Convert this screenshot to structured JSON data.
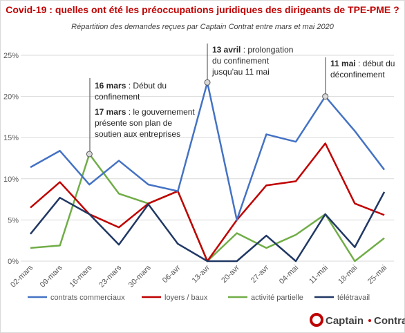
{
  "chart_data": {
    "type": "line",
    "title": "Covid-19 : quelles ont été les préoccupations juridiques des dirigeants de TPE-PME ?",
    "subtitle": "Répartition des demandes reçues par Captain Contrat entre mars et mai 2020",
    "categories": [
      "02-mars",
      "09-mars",
      "16-mars",
      "23-mars",
      "30-mars",
      "06-avr",
      "13-avr",
      "20-avr",
      "27-avr",
      "04-mai",
      "11-mai",
      "18-mai",
      "25-mai"
    ],
    "series": [
      {
        "name": "contrats commerciaux",
        "color": "#4472c4",
        "values": [
          11.4,
          13.4,
          9.3,
          12.2,
          9.3,
          8.5,
          21.7,
          5,
          15.4,
          14.5,
          20,
          15.8,
          11.1
        ]
      },
      {
        "name": "loyers / baux",
        "color": "#c00000",
        "values": [
          6.5,
          9.6,
          5.7,
          4.1,
          7,
          8.5,
          0,
          5,
          9.2,
          9.7,
          14.3,
          7,
          5.6
        ]
      },
      {
        "name": "activité partielle",
        "color": "#70ad47",
        "values": [
          1.6,
          1.9,
          13,
          8.2,
          7,
          8.5,
          0,
          3.4,
          1.6,
          3.2,
          5.7,
          0,
          2.8
        ]
      },
      {
        "name": "télétravail",
        "color": "#203864",
        "values": [
          3.3,
          7.7,
          5.7,
          2,
          6.9,
          2.1,
          0,
          0,
          3.1,
          0,
          5.7,
          1.7,
          8.4
        ]
      }
    ],
    "ylim": [
      0,
      25
    ],
    "yticks": [
      {
        "value": 0,
        "label": "0%"
      },
      {
        "value": 5,
        "label": "5%"
      },
      {
        "value": 10,
        "label": "10%"
      },
      {
        "value": 15,
        "label": "15%"
      },
      {
        "value": 20,
        "label": "20%"
      },
      {
        "value": 25,
        "label": "25%"
      }
    ],
    "grid": true,
    "legend": "bottom",
    "annotations": [
      {
        "paragraphs": [
          [
            {
              "bold": "16 mars",
              "text": " : Début du"
            },
            {
              "text": "confinement"
            }
          ],
          [
            {
              "bold": "17 mars",
              "text": " : le gouvernement"
            },
            {
              "text": "présente son plan de"
            },
            {
              "text": "soutien aux entreprises"
            }
          ]
        ]
      },
      {
        "paragraphs": [
          [
            {
              "bold": "13 avril",
              "text": " : prolongation"
            },
            {
              "text": "du confinement"
            },
            {
              "text": "jusqu'au 11 mai"
            }
          ]
        ]
      },
      {
        "paragraphs": [
          [
            {
              "bold": "11 mai",
              "text": " : début du"
            },
            {
              "text": "déconfinement"
            }
          ]
        ]
      }
    ],
    "logo": {
      "first": "Captain",
      "second": "Contrat"
    }
  }
}
